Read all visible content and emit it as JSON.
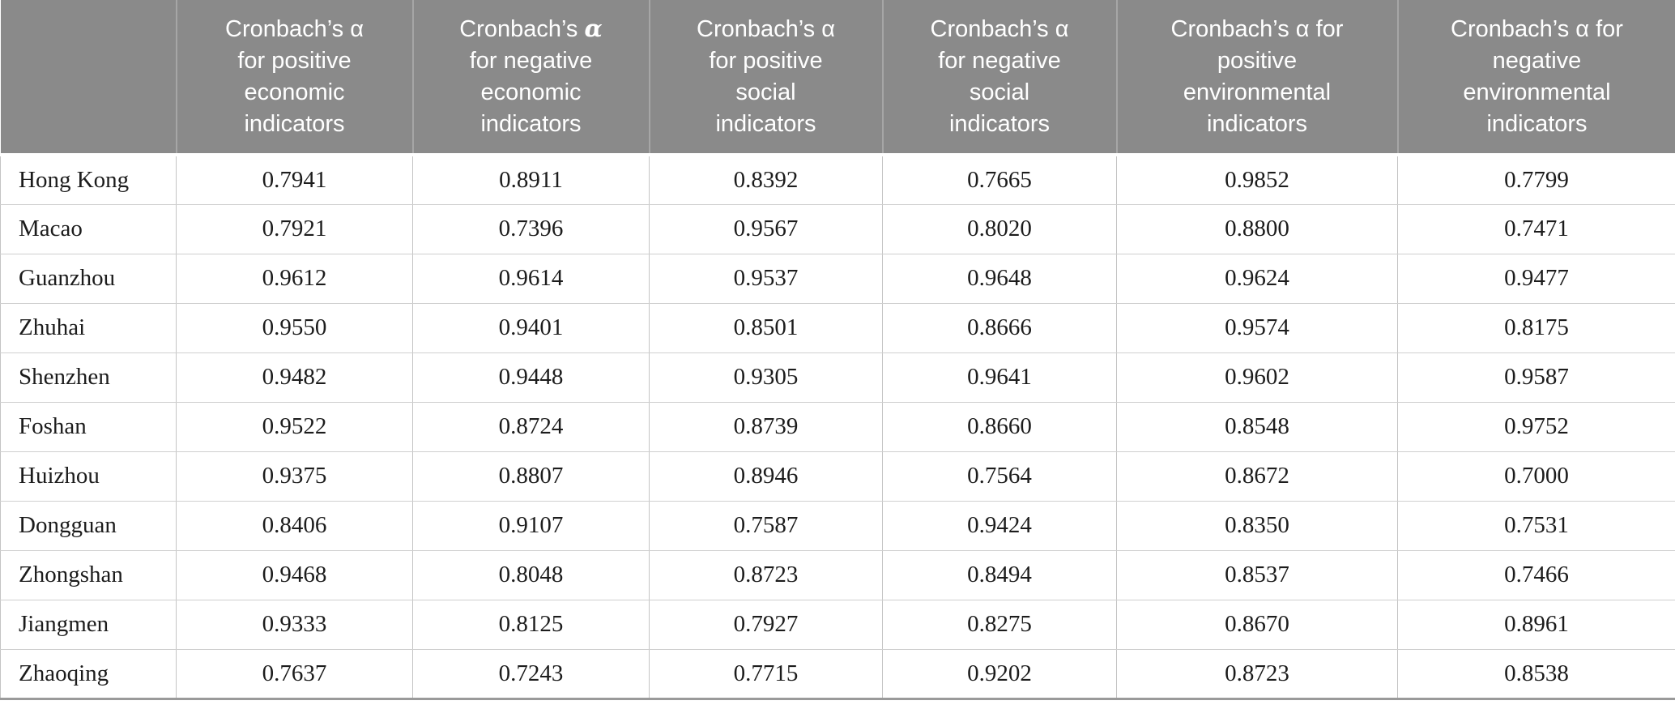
{
  "colors": {
    "header_bg": "#8a8a8a",
    "header_text": "#ffffff",
    "header_divider": "#a6a6a6",
    "body_text": "#1c1c1c",
    "cell_border": "#c4c4c4",
    "bottom_border": "#9a9a9a"
  },
  "table": {
    "corner_label": "",
    "columns": [
      {
        "label": "Cronbach’s α\nfor positive\neconomic\nindicators",
        "alpha_style": "regular"
      },
      {
        "label": "Cronbach’s α\nfor negative\neconomic\nindicators",
        "alpha_style": "bold-italic"
      },
      {
        "label": "Cronbach’s α\nfor positive\nsocial\nindicators",
        "alpha_style": "regular"
      },
      {
        "label": "Cronbach’s α\nfor negative\nsocial\nindicators",
        "alpha_style": "regular"
      },
      {
        "label": "Cronbach’s α for\npositive\nenvironmental\nindicators",
        "alpha_style": "regular"
      },
      {
        "label": "Cronbach’s α for\nnegative\nenvironmental\nindicators",
        "alpha_style": "regular"
      }
    ],
    "rows": [
      {
        "city": "Hong Kong",
        "values": [
          "0.7941",
          "0.8911",
          "0.8392",
          "0.7665",
          "0.9852",
          "0.7799"
        ]
      },
      {
        "city": "Macao",
        "values": [
          "0.7921",
          "0.7396",
          "0.9567",
          "0.8020",
          "0.8800",
          "0.7471"
        ]
      },
      {
        "city": "Guanzhou",
        "values": [
          "0.9612",
          "0.9614",
          "0.9537",
          "0.9648",
          "0.9624",
          "0.9477"
        ]
      },
      {
        "city": "Zhuhai",
        "values": [
          "0.9550",
          "0.9401",
          "0.8501",
          "0.8666",
          "0.9574",
          "0.8175"
        ]
      },
      {
        "city": "Shenzhen",
        "values": [
          "0.9482",
          "0.9448",
          "0.9305",
          "0.9641",
          "0.9602",
          "0.9587"
        ]
      },
      {
        "city": "Foshan",
        "values": [
          "0.9522",
          "0.8724",
          "0.8739",
          "0.8660",
          "0.8548",
          "0.9752"
        ]
      },
      {
        "city": "Huizhou",
        "values": [
          "0.9375",
          "0.8807",
          "0.8946",
          "0.7564",
          "0.8672",
          "0.7000"
        ]
      },
      {
        "city": "Dongguan",
        "values": [
          "0.8406",
          "0.9107",
          "0.7587",
          "0.9424",
          "0.8350",
          "0.7531"
        ]
      },
      {
        "city": "Zhongshan",
        "values": [
          "0.9468",
          "0.8048",
          "0.8723",
          "0.8494",
          "0.8537",
          "0.7466"
        ]
      },
      {
        "city": "Jiangmen",
        "values": [
          "0.9333",
          "0.8125",
          "0.7927",
          "0.8275",
          "0.8670",
          "0.8961"
        ]
      },
      {
        "city": "Zhaoqing",
        "values": [
          "0.7637",
          "0.7243",
          "0.7715",
          "0.9202",
          "0.8723",
          "0.8538"
        ]
      }
    ]
  }
}
